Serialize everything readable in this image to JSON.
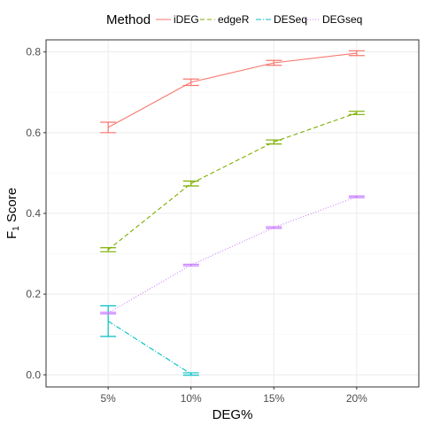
{
  "chart_data": {
    "type": "line",
    "xlabel": "DEG%",
    "ylabel_main": "F",
    "ylabel_sub": "1",
    "ylabel_rest": " Score",
    "categories": [
      "5%",
      "10%",
      "15%",
      "20%"
    ],
    "ylim": [
      -0.03,
      0.83
    ],
    "yticks": [
      0.0,
      0.2,
      0.4,
      0.6,
      0.8
    ],
    "ytick_labels": [
      "0.0",
      "0.2",
      "0.4",
      "0.6",
      "0.8"
    ],
    "grid": true,
    "legend_placement": "top",
    "legend_title": "Method",
    "series": [
      {
        "name": "iDEG",
        "color": "#F8766D",
        "dash": "",
        "x": [
          0,
          1,
          2,
          3
        ],
        "values": [
          0.613,
          0.725,
          0.773,
          0.797
        ],
        "err": [
          0.013,
          0.008,
          0.006,
          0.006
        ]
      },
      {
        "name": "edgeR",
        "color": "#7CAE00",
        "dash": "5,3",
        "x": [
          0,
          1,
          2,
          3
        ],
        "values": [
          0.31,
          0.474,
          0.577,
          0.649
        ],
        "err": [
          0.005,
          0.006,
          0.005,
          0.004
        ]
      },
      {
        "name": "DESeq",
        "color": "#00BFC4",
        "dash": "6,2,1,2",
        "x": [
          0,
          1
        ],
        "values": [
          0.133,
          0.002
        ],
        "err": [
          0.038,
          0.003
        ]
      },
      {
        "name": "DEGseq",
        "color": "#C77CFF",
        "dash": "1,2",
        "x": [
          0,
          1,
          2,
          3
        ],
        "values": [
          0.153,
          0.272,
          0.365,
          0.441
        ],
        "err": [
          0.002,
          0.002,
          0.002,
          0.002
        ]
      }
    ]
  }
}
